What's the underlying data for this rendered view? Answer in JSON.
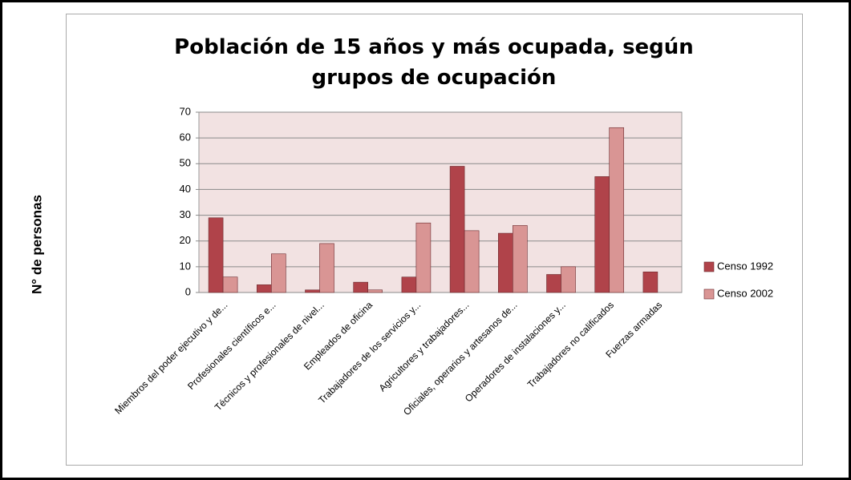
{
  "chart_data": {
    "type": "bar",
    "title": "Población de 15 años y más ocupada, según grupos de ocupación",
    "y_label": "N° de personas",
    "categories": [
      "Miembros del poder ejecutivo y de...",
      "Profesionales científicos e...",
      "Técnicos y profesionales de nivel...",
      "Empleados de oficina",
      "Trabajadores de los servicios y...",
      "Agricultores y trabajadores...",
      "Oficiales, operarios y artesanos de...",
      "Operadores de instalaciones y...",
      "Trabajadores no calificados",
      "Fuerzas armadas"
    ],
    "series": [
      {
        "name": "Censo 1992",
        "color": "#b0434a",
        "values": [
          29,
          3,
          1,
          4,
          6,
          49,
          23,
          7,
          45,
          8
        ]
      },
      {
        "name": "Censo 2002",
        "color": "#d99594",
        "values": [
          6,
          15,
          19,
          1,
          27,
          24,
          26,
          10,
          64,
          0
        ]
      }
    ],
    "ylim": [
      0,
      70
    ],
    "yticks": [
      0,
      10,
      20,
      30,
      40,
      50,
      60,
      70
    ],
    "grid": true,
    "legend": "right"
  }
}
